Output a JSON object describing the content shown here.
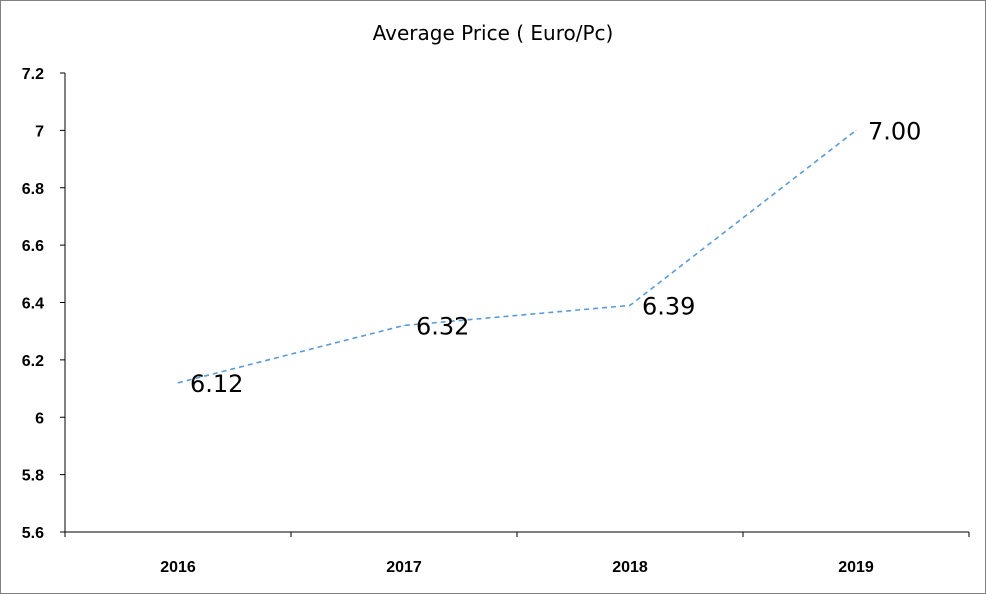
{
  "chart_data": {
    "type": "line",
    "title": "Average Price ( Euro/Pc)",
    "xlabel": "",
    "ylabel": "",
    "categories": [
      "2016",
      "2017",
      "2018",
      "2019"
    ],
    "series": [
      {
        "values": [
          6.12,
          6.32,
          6.39,
          7.0
        ],
        "data_labels": [
          "6.12",
          "6.32",
          "6.39",
          "7.00"
        ]
      }
    ],
    "ylim": [
      5.6,
      7.2
    ],
    "yticks": [
      "5.6",
      "5.8",
      "6",
      "6.2",
      "6.4",
      "6.6",
      "6.8",
      "7",
      "7.2"
    ],
    "grid": false,
    "legend": "none",
    "line_color": "#5b9bd5",
    "line_style": "dashed"
  }
}
